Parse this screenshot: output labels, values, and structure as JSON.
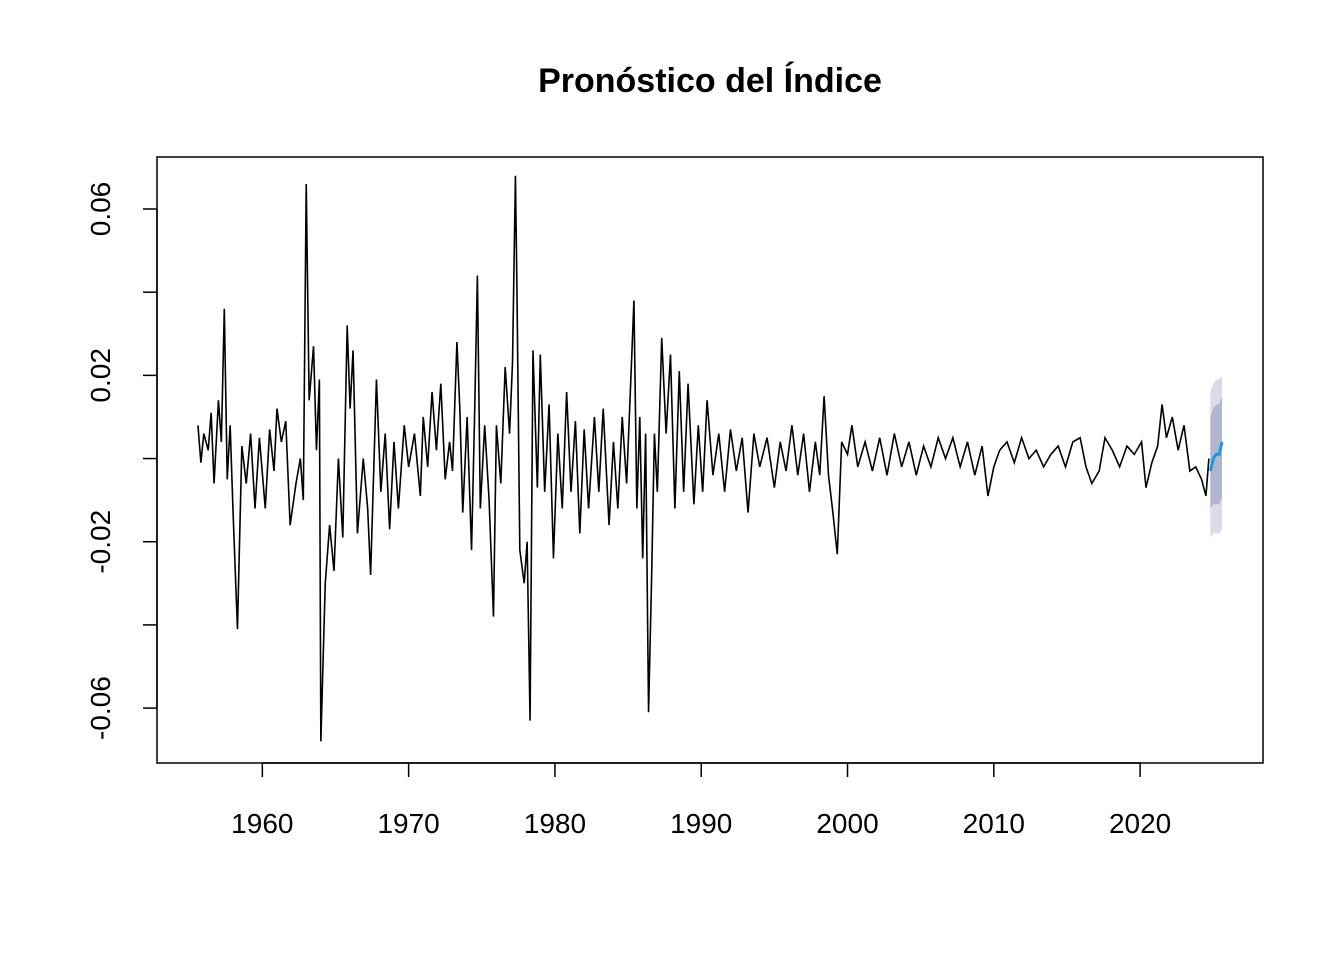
{
  "chart_data": {
    "type": "line",
    "title": "Pronóstico del Índice",
    "x": [
      1955.6,
      1955.8,
      1956.0,
      1956.3,
      1956.5,
      1956.7,
      1957.0,
      1957.2,
      1957.4,
      1957.6,
      1957.8,
      1958.0,
      1958.3,
      1958.6,
      1958.9,
      1959.2,
      1959.5,
      1959.8,
      1960.2,
      1960.5,
      1960.8,
      1961.0,
      1961.3,
      1961.6,
      1961.9,
      1962.3,
      1962.6,
      1962.8,
      1963.0,
      1963.2,
      1963.5,
      1963.7,
      1963.9,
      1964.0,
      1964.3,
      1964.6,
      1964.9,
      1965.2,
      1965.5,
      1965.8,
      1966.0,
      1966.2,
      1966.5,
      1966.9,
      1967.2,
      1967.4,
      1967.8,
      1968.1,
      1968.4,
      1968.7,
      1969.0,
      1969.3,
      1969.7,
      1970.0,
      1970.4,
      1970.8,
      1971.0,
      1971.3,
      1971.6,
      1971.9,
      1972.2,
      1972.5,
      1972.8,
      1973.0,
      1973.3,
      1973.5,
      1973.7,
      1974.0,
      1974.3,
      1974.5,
      1974.7,
      1974.9,
      1975.2,
      1975.5,
      1975.8,
      1976.0,
      1976.3,
      1976.6,
      1976.9,
      1977.1,
      1977.3,
      1977.4,
      1977.6,
      1977.9,
      1978.1,
      1978.3,
      1978.5,
      1978.8,
      1979.0,
      1979.3,
      1979.6,
      1979.9,
      1980.2,
      1980.5,
      1980.8,
      1981.1,
      1981.4,
      1981.7,
      1982.0,
      1982.3,
      1982.7,
      1983.0,
      1983.3,
      1983.7,
      1984.0,
      1984.3,
      1984.6,
      1984.9,
      1985.2,
      1985.4,
      1985.6,
      1985.8,
      1986.0,
      1986.2,
      1986.4,
      1986.6,
      1986.8,
      1987.0,
      1987.3,
      1987.6,
      1987.9,
      1988.2,
      1988.5,
      1988.8,
      1989.1,
      1989.5,
      1989.8,
      1990.1,
      1990.4,
      1990.8,
      1991.2,
      1991.6,
      1992.0,
      1992.4,
      1992.8,
      1993.2,
      1993.6,
      1994.0,
      1994.5,
      1995.0,
      1995.4,
      1995.8,
      1996.2,
      1996.6,
      1997.0,
      1997.4,
      1997.8,
      1998.1,
      1998.4,
      1998.7,
      1999.0,
      1999.3,
      1999.6,
      2000.0,
      2000.3,
      2000.7,
      2001.2,
      2001.7,
      2002.2,
      2002.7,
      2003.2,
      2003.7,
      2004.2,
      2004.7,
      2005.2,
      2005.7,
      2006.2,
      2006.7,
      2007.2,
      2007.7,
      2008.2,
      2008.7,
      2009.2,
      2009.6,
      2010.0,
      2010.4,
      2010.9,
      2011.4,
      2011.9,
      2012.4,
      2012.9,
      2013.4,
      2013.9,
      2014.4,
      2014.9,
      2015.4,
      2015.9,
      2016.3,
      2016.7,
      2017.2,
      2017.6,
      2018.1,
      2018.6,
      2019.1,
      2019.6,
      2020.1,
      2020.4,
      2020.8,
      2021.2,
      2021.5,
      2021.8,
      2022.2,
      2022.6,
      2023.0,
      2023.4,
      2023.8,
      2024.2,
      2024.5,
      2024.7
    ],
    "values": [
      0.008,
      -0.001,
      0.006,
      0.002,
      0.011,
      -0.006,
      0.014,
      0.004,
      0.036,
      -0.005,
      0.008,
      -0.013,
      -0.041,
      0.003,
      -0.006,
      0.006,
      -0.012,
      0.005,
      -0.012,
      0.007,
      -0.003,
      0.012,
      0.004,
      0.009,
      -0.016,
      -0.006,
      0.0,
      -0.01,
      0.066,
      0.014,
      0.027,
      0.002,
      0.019,
      -0.068,
      -0.03,
      -0.016,
      -0.027,
      0.0,
      -0.019,
      0.032,
      0.012,
      0.026,
      -0.018,
      0.0,
      -0.012,
      -0.028,
      0.019,
      -0.008,
      0.006,
      -0.017,
      0.004,
      -0.012,
      0.008,
      -0.002,
      0.006,
      -0.009,
      0.01,
      -0.002,
      0.016,
      0.002,
      0.018,
      -0.005,
      0.004,
      -0.003,
      0.028,
      0.012,
      -0.013,
      0.01,
      -0.022,
      0.009,
      0.044,
      -0.012,
      0.008,
      -0.01,
      -0.038,
      0.008,
      -0.006,
      0.022,
      0.006,
      0.023,
      0.068,
      0.042,
      -0.022,
      -0.03,
      -0.02,
      -0.063,
      0.026,
      -0.007,
      0.025,
      -0.008,
      0.013,
      -0.024,
      0.006,
      -0.012,
      0.016,
      -0.008,
      0.009,
      -0.018,
      0.007,
      -0.012,
      0.01,
      -0.008,
      0.012,
      -0.016,
      0.004,
      -0.012,
      0.01,
      -0.006,
      0.02,
      0.038,
      -0.012,
      0.01,
      -0.024,
      0.006,
      -0.061,
      -0.03,
      0.006,
      -0.008,
      0.029,
      0.006,
      0.025,
      -0.012,
      0.021,
      -0.008,
      0.018,
      -0.011,
      0.008,
      -0.008,
      0.014,
      -0.004,
      0.006,
      -0.008,
      0.007,
      -0.003,
      0.005,
      -0.013,
      0.006,
      -0.002,
      0.005,
      -0.007,
      0.004,
      -0.003,
      0.008,
      -0.004,
      0.006,
      -0.008,
      0.004,
      -0.004,
      0.015,
      -0.004,
      -0.013,
      -0.023,
      0.004,
      0.001,
      0.008,
      -0.002,
      0.004,
      -0.003,
      0.005,
      -0.004,
      0.006,
      -0.002,
      0.004,
      -0.004,
      0.003,
      -0.002,
      0.005,
      0.0,
      0.005,
      -0.002,
      0.004,
      -0.004,
      0.003,
      -0.009,
      -0.002,
      0.002,
      0.004,
      -0.001,
      0.005,
      0.0,
      0.002,
      -0.002,
      0.001,
      0.003,
      -0.002,
      0.004,
      0.005,
      -0.002,
      -0.006,
      -0.003,
      0.005,
      0.002,
      -0.002,
      0.003,
      0.001,
      0.004,
      -0.007,
      -0.001,
      0.003,
      0.013,
      0.005,
      0.01,
      0.002,
      0.008,
      -0.003,
      -0.002,
      -0.005,
      -0.009,
      0.0
    ],
    "color": "#000000",
    "forecast": {
      "x": [
        2024.8,
        2025.0,
        2025.2,
        2025.4,
        2025.6
      ],
      "mean": [
        -0.003,
        0.0,
        0.001,
        0.001,
        0.004
      ],
      "lo80": [
        -0.012,
        -0.011,
        -0.011,
        -0.011,
        -0.009
      ],
      "hi80": [
        0.01,
        0.012,
        0.013,
        0.013,
        0.015
      ],
      "lo95": [
        -0.019,
        -0.018,
        -0.018,
        -0.018,
        -0.017
      ],
      "hi95": [
        0.016,
        0.018,
        0.019,
        0.019,
        0.02
      ],
      "color": "#2297e6",
      "color80": "#b1b5ce",
      "color95": "#dbdbe6"
    },
    "xlim": [
      1952.8,
      2028.4
    ],
    "xticks": [
      1960,
      1970,
      1980,
      1990,
      2000,
      2010,
      2020
    ],
    "ylim": [
      -0.0732,
      0.0725
    ],
    "yticks": [
      -0.06,
      -0.02,
      0.02,
      0.06
    ],
    "yticks_unlabeled": [
      -0.04,
      0,
      0.04
    ]
  }
}
